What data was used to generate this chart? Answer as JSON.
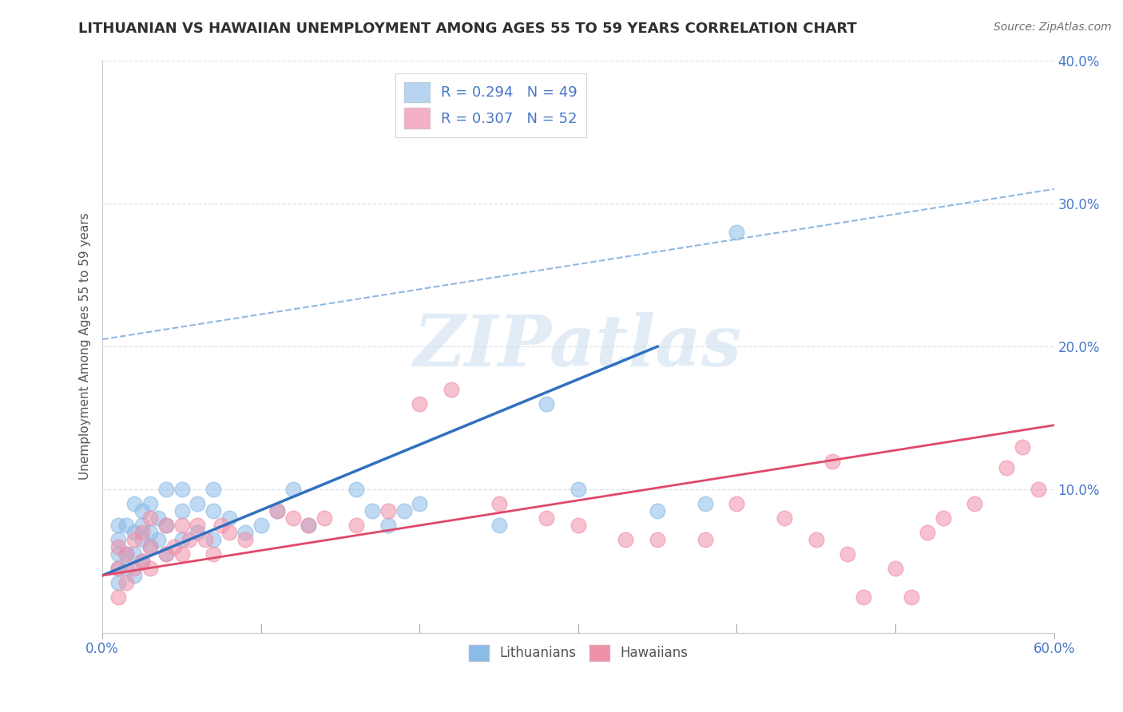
{
  "title": "LITHUANIAN VS HAWAIIAN UNEMPLOYMENT AMONG AGES 55 TO 59 YEARS CORRELATION CHART",
  "source": "Source: ZipAtlas.com",
  "ylabel": "Unemployment Among Ages 55 to 59 years",
  "xlim": [
    0.0,
    0.6
  ],
  "ylim": [
    0.0,
    0.4
  ],
  "xticks": [
    0.0,
    0.6
  ],
  "yticks": [
    0.0,
    0.1,
    0.2,
    0.3,
    0.4
  ],
  "legend_entries": [
    {
      "label": "R = 0.294   N = 49",
      "color": "#b8d4f0"
    },
    {
      "label": "R = 0.307   N = 52",
      "color": "#f5b0c8"
    }
  ],
  "lithuanian_color": "#8bbce8",
  "hawaiian_color": "#f090a8",
  "trend_line_lit_color": "#3070c0",
  "trend_line_haw_color": "#e04868",
  "dashed_line_color": "#90b8e0",
  "grid_color": "#d8dde8",
  "title_color": "#303030",
  "tick_label_color": "#4878c8",
  "watermark_color": "#d0e0f0",
  "watermark_text": "ZIPatlas",
  "lit_trend_x": [
    0.0,
    0.35
  ],
  "lit_trend_y": [
    0.04,
    0.2
  ],
  "haw_trend_x": [
    0.0,
    0.6
  ],
  "haw_trend_y": [
    0.04,
    0.145
  ],
  "dashed_trend_x": [
    0.0,
    0.6
  ],
  "dashed_trend_y": [
    0.205,
    0.31
  ],
  "lit_scatter_x": [
    0.01,
    0.01,
    0.01,
    0.01,
    0.01,
    0.015,
    0.015,
    0.015,
    0.02,
    0.02,
    0.02,
    0.02,
    0.025,
    0.025,
    0.025,
    0.025,
    0.03,
    0.03,
    0.03,
    0.035,
    0.035,
    0.04,
    0.04,
    0.04,
    0.05,
    0.05,
    0.05,
    0.06,
    0.06,
    0.07,
    0.07,
    0.07,
    0.08,
    0.09,
    0.1,
    0.11,
    0.12,
    0.13,
    0.16,
    0.17,
    0.18,
    0.19,
    0.2,
    0.25,
    0.28,
    0.3,
    0.35,
    0.38,
    0.4
  ],
  "lit_scatter_y": [
    0.035,
    0.045,
    0.055,
    0.065,
    0.075,
    0.045,
    0.055,
    0.075,
    0.04,
    0.055,
    0.07,
    0.09,
    0.05,
    0.065,
    0.075,
    0.085,
    0.06,
    0.07,
    0.09,
    0.065,
    0.08,
    0.055,
    0.075,
    0.1,
    0.065,
    0.085,
    0.1,
    0.07,
    0.09,
    0.065,
    0.085,
    0.1,
    0.08,
    0.07,
    0.075,
    0.085,
    0.1,
    0.075,
    0.1,
    0.085,
    0.075,
    0.085,
    0.09,
    0.075,
    0.16,
    0.1,
    0.085,
    0.09,
    0.28
  ],
  "haw_scatter_x": [
    0.01,
    0.01,
    0.01,
    0.015,
    0.015,
    0.02,
    0.02,
    0.025,
    0.025,
    0.03,
    0.03,
    0.03,
    0.04,
    0.04,
    0.045,
    0.05,
    0.05,
    0.055,
    0.06,
    0.065,
    0.07,
    0.075,
    0.08,
    0.09,
    0.11,
    0.12,
    0.13,
    0.14,
    0.16,
    0.18,
    0.2,
    0.22,
    0.25,
    0.28,
    0.3,
    0.33,
    0.35,
    0.38,
    0.4,
    0.43,
    0.45,
    0.47,
    0.5,
    0.52,
    0.53,
    0.55,
    0.57,
    0.58,
    0.59,
    0.46,
    0.48,
    0.51
  ],
  "haw_scatter_y": [
    0.025,
    0.045,
    0.06,
    0.035,
    0.055,
    0.045,
    0.065,
    0.05,
    0.07,
    0.045,
    0.06,
    0.08,
    0.055,
    0.075,
    0.06,
    0.055,
    0.075,
    0.065,
    0.075,
    0.065,
    0.055,
    0.075,
    0.07,
    0.065,
    0.085,
    0.08,
    0.075,
    0.08,
    0.075,
    0.085,
    0.16,
    0.17,
    0.09,
    0.08,
    0.075,
    0.065,
    0.065,
    0.065,
    0.09,
    0.08,
    0.065,
    0.055,
    0.045,
    0.07,
    0.08,
    0.09,
    0.115,
    0.13,
    0.1,
    0.12,
    0.025,
    0.025
  ],
  "figsize": [
    14.06,
    8.92
  ],
  "dpi": 100
}
